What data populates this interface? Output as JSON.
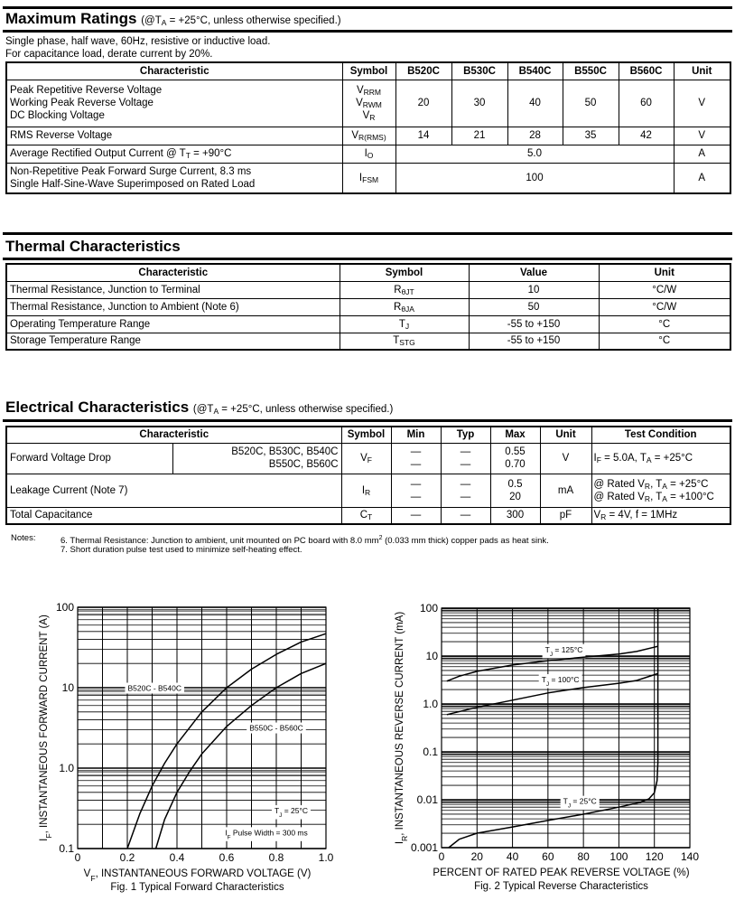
{
  "max_ratings": {
    "title": "Maximum Ratings",
    "condition": [
      "(@T",
      {
        "sub": "A"
      },
      " = +25°C, unless otherwise specified.)"
    ],
    "intro": [
      "Single phase, half wave, 60Hz, resistive or inductive load.",
      "For capacitance load, derate current by 20%."
    ],
    "headers": [
      "Characteristic",
      "Symbol",
      "B520C",
      "B530C",
      "B540C",
      "B550C",
      "B560C",
      "Unit"
    ],
    "rows": [
      {
        "characteristic": [
          "Peak Repetitive Reverse Voltage",
          "Working Peak Reverse Voltage",
          "DC Blocking Voltage"
        ],
        "symbol": [
          [
            "V",
            {
              "sub": "RRM"
            }
          ],
          [
            "V",
            {
              "sub": "RWM"
            }
          ],
          [
            "V",
            {
              "sub": "R"
            }
          ]
        ],
        "values": [
          "20",
          "30",
          "40",
          "50",
          "60"
        ],
        "unit": "V"
      },
      {
        "characteristic": [
          "RMS Reverse Voltage"
        ],
        "symbol": [
          [
            "V",
            {
              "sub": "R(RMS)"
            }
          ]
        ],
        "values": [
          "14",
          "21",
          "28",
          "35",
          "42"
        ],
        "unit": "V"
      },
      {
        "characteristic": [
          [
            "Average Rectified Output Current @ T",
            {
              "sub": "T"
            },
            " = +90°C"
          ]
        ],
        "symbol": [
          [
            "I",
            {
              "sub": "O"
            }
          ]
        ],
        "value_all": "5.0",
        "unit": "A"
      },
      {
        "characteristic": [
          "Non-Repetitive Peak Forward Surge Current, 8.3 ms",
          "Single Half-Sine-Wave Superimposed on Rated Load"
        ],
        "symbol": [
          [
            "I",
            {
              "sub": "FSM"
            }
          ]
        ],
        "value_all": "100",
        "unit": "A"
      }
    ]
  },
  "thermal": {
    "title": "Thermal Characteristics",
    "headers": [
      "Characteristic",
      "Symbol",
      "Value",
      "Unit"
    ],
    "rows": [
      {
        "characteristic": "Thermal Resistance, Junction to Terminal",
        "symbol": [
          "R",
          {
            "sub": "θJT"
          }
        ],
        "value": "10",
        "unit": "°C/W"
      },
      {
        "characteristic": "Thermal Resistance, Junction to Ambient (Note 6)",
        "symbol": [
          "R",
          {
            "sub": "θJA"
          }
        ],
        "value": "50",
        "unit": "°C/W"
      },
      {
        "characteristic": "Operating Temperature Range",
        "symbol": [
          "T",
          {
            "sub": "J"
          }
        ],
        "value": "-55 to +150",
        "unit": "°C"
      },
      {
        "characteristic": "Storage Temperature Range",
        "symbol": [
          "T",
          {
            "sub": "STG"
          }
        ],
        "value": "-55 to +150",
        "unit": "°C"
      }
    ]
  },
  "electrical": {
    "title": "Electrical Characteristics",
    "condition": [
      "(@T",
      {
        "sub": "A"
      },
      " = +25°C, unless otherwise specified.)"
    ],
    "headers": [
      "Characteristic",
      "Symbol",
      "Min",
      "Typ",
      "Max",
      "Unit",
      "Test Condition"
    ],
    "rows": [
      {
        "characteristic": "Forward Voltage Drop",
        "parts": [
          "B520C, B530C, B540C",
          "B550C, B560C"
        ],
        "symbol": [
          "V",
          {
            "sub": "F"
          }
        ],
        "min": [
          "—",
          "—"
        ],
        "typ": [
          "—",
          "—"
        ],
        "max": [
          "0.55",
          "0.70"
        ],
        "unit": "V",
        "test": [
          [
            "I",
            {
              "sub": "F"
            },
            " = 5.0A, T",
            {
              "sub": "A"
            },
            " = +25°C"
          ]
        ]
      },
      {
        "characteristic": "Leakage Current (Note 7)",
        "symbol": [
          "I",
          {
            "sub": "R"
          }
        ],
        "min": [
          "—",
          "—"
        ],
        "typ": [
          "—",
          "—"
        ],
        "max": [
          "0.5",
          "20"
        ],
        "unit": "mA",
        "test": [
          [
            "@ Rated V",
            {
              "sub": "R"
            },
            ", T",
            {
              "sub": "A"
            },
            " = +25°C"
          ],
          [
            "@ Rated V",
            {
              "sub": "R"
            },
            ", T",
            {
              "sub": "A"
            },
            " = +100°C"
          ]
        ]
      },
      {
        "characteristic": "Total Capacitance",
        "symbol": [
          "C",
          {
            "sub": "T"
          }
        ],
        "min": [
          "—"
        ],
        "typ": [
          "—"
        ],
        "max": [
          "300"
        ],
        "unit": "pF",
        "test": [
          [
            "V",
            {
              "sub": "R"
            },
            " = 4V, f = 1MHz"
          ]
        ]
      }
    ]
  },
  "notes": {
    "label": "Notes:",
    "items": [
      [
        "6. Thermal Resistance: Junction to ambient, unit mounted on PC board with 8.0 mm",
        {
          "sup": "2"
        },
        " (0.033 mm thick) copper pads as heat sink."
      ],
      [
        "7. Short duration pulse test used to minimize self-heating effect."
      ]
    ]
  },
  "chart_data": [
    {
      "type": "line",
      "title": "Fig. 1  Typical Forward Characteristics",
      "xlabel": [
        "V",
        {
          "sub": "F"
        },
        ", INSTANTANEOUS FORWARD VOLTAGE (V)"
      ],
      "ylabel": [
        "I",
        {
          "sub": "F"
        },
        ", INSTANTANEOUS FORWARD CURRENT (A)"
      ],
      "xlim": [
        0,
        1.0
      ],
      "ylim": [
        0.1,
        100
      ],
      "yscale": "log",
      "grid": true,
      "xticks": [
        "0",
        "0.2",
        "0.4",
        "0.6",
        "0.8",
        "1.0"
      ],
      "xtick_values": [
        0,
        0.2,
        0.4,
        0.6,
        0.8,
        1.0
      ],
      "yticks": [
        "0.1",
        "1.0",
        "10",
        "100"
      ],
      "ytick_values": [
        0.1,
        1,
        10,
        100
      ],
      "series": [
        {
          "name": "B520C - B540C",
          "x": [
            0.2,
            0.25,
            0.3,
            0.35,
            0.4,
            0.5,
            0.6,
            0.7,
            0.8,
            0.9,
            1.0
          ],
          "y": [
            0.1,
            0.27,
            0.6,
            1.15,
            2.0,
            5.0,
            10,
            17,
            26,
            37,
            47
          ]
        },
        {
          "name": "B550C - B560C",
          "x": [
            0.315,
            0.35,
            0.4,
            0.45,
            0.5,
            0.6,
            0.7,
            0.8,
            0.9,
            1.0
          ],
          "y": [
            0.1,
            0.23,
            0.5,
            0.9,
            1.5,
            3.3,
            6.0,
            10,
            15,
            20
          ]
        }
      ],
      "annotations": [
        {
          "parts": [
            "B520C - B540C"
          ],
          "at": [
            0.31,
            10
          ]
        },
        {
          "parts": [
            "B550C - B560C"
          ],
          "at": [
            0.8,
            3.2
          ]
        },
        {
          "parts": [
            "T",
            {
              "sub": "J"
            },
            " = 25°C"
          ],
          "at": [
            0.86,
            0.3
          ]
        },
        {
          "parts": [
            "I",
            {
              "sub": "F"
            },
            " Pulse Width = 300 ms"
          ],
          "at": [
            0.76,
            0.16
          ]
        }
      ]
    },
    {
      "type": "line",
      "title": "Fig. 2  Typical Reverse Characteristics",
      "xlabel": [
        "PERCENT OF RATED PEAK REVERSE VOLTAGE (%)"
      ],
      "ylabel": [
        "I",
        {
          "sub": "R"
        },
        ", INSTANTANEOUS REVERSE CURRENT (mA)"
      ],
      "xlim": [
        0,
        140
      ],
      "ylim": [
        0.001,
        100
      ],
      "yscale": "log",
      "grid": true,
      "xticks": [
        "0",
        "20",
        "40",
        "60",
        "80",
        "100",
        "120",
        "140"
      ],
      "xtick_values": [
        0,
        20,
        40,
        60,
        80,
        100,
        120,
        140
      ],
      "yticks": [
        "0.001",
        "0.01",
        "0.1",
        "1.0",
        "10",
        "100"
      ],
      "ytick_values": [
        0.001,
        0.01,
        0.1,
        1,
        10,
        100
      ],
      "series": [
        {
          "name": "TJ = 125°C",
          "x": [
            3,
            10,
            20,
            40,
            60,
            80,
            100,
            110,
            122
          ],
          "y": [
            3.0,
            3.8,
            4.8,
            6.5,
            8.0,
            9.5,
            11,
            12.5,
            16
          ]
        },
        {
          "name": "TJ = 100°C",
          "x": [
            3,
            20,
            40,
            60,
            80,
            100,
            110,
            122
          ],
          "y": [
            0.6,
            0.85,
            1.2,
            1.7,
            2.2,
            2.7,
            3.1,
            4.3
          ]
        },
        {
          "name": "TJ = 25°C",
          "x": [
            4,
            10,
            20,
            40,
            60,
            80,
            100,
            112,
            117,
            120,
            121.5,
            122,
            122,
            122
          ],
          "y": [
            0.001,
            0.0015,
            0.002,
            0.0027,
            0.0037,
            0.005,
            0.007,
            0.0088,
            0.0105,
            0.014,
            0.025,
            0.06,
            1,
            100
          ]
        }
      ],
      "annotations": [
        {
          "parts": [
            "T",
            {
              "sub": "J"
            },
            " = 125°C"
          ],
          "at": [
            69,
            14
          ]
        },
        {
          "parts": [
            "T",
            {
              "sub": "J"
            },
            " = 100°C"
          ],
          "at": [
            67,
            3.3
          ]
        },
        {
          "parts": [
            "T",
            {
              "sub": "J"
            },
            " = 25°C"
          ],
          "at": [
            78,
            0.0095
          ]
        }
      ]
    }
  ]
}
